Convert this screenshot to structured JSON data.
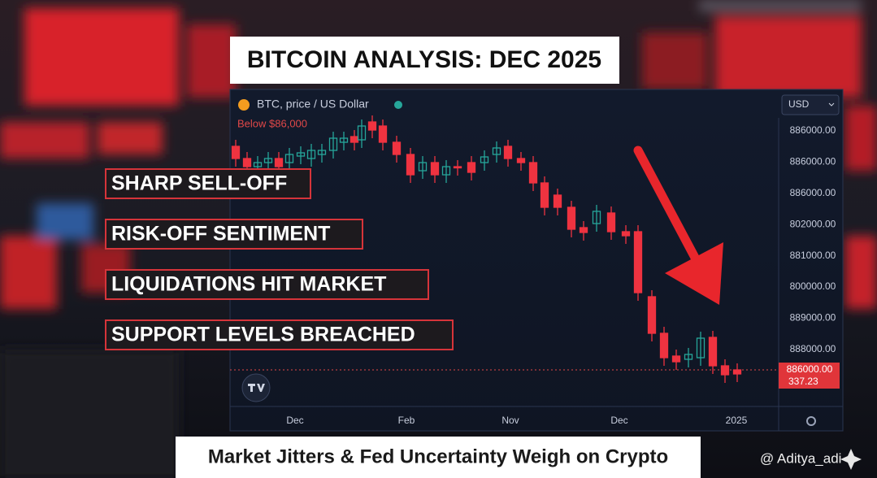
{
  "title": "BITCOIN ANALYSIS: DEC 2025",
  "chart_header": {
    "symbol": "BTC, price / US Dollar",
    "alert": "Below $86,000",
    "currency": "USD"
  },
  "price_axis": [
    "886000.00",
    "886000.00",
    "886000.00",
    "802000.00",
    "881000.00",
    "800000.00",
    "889000.00",
    "888000.00"
  ],
  "price_tag": {
    "price": "886000.00",
    "countdown": "337.23"
  },
  "time_axis": [
    "Dec",
    "Feb",
    "Nov",
    "Dec",
    "2025"
  ],
  "bullets": [
    "SHARP SELL-OFF",
    "RISK-OFF SENTIMENT",
    "LIQUIDATIONS HIT MARKET",
    "SUPPORT LEVELS BREACHED"
  ],
  "caption": "Market Jitters & Fed Uncertainty Weigh on Crypto",
  "watermark": "@ Aditya_adi"
}
